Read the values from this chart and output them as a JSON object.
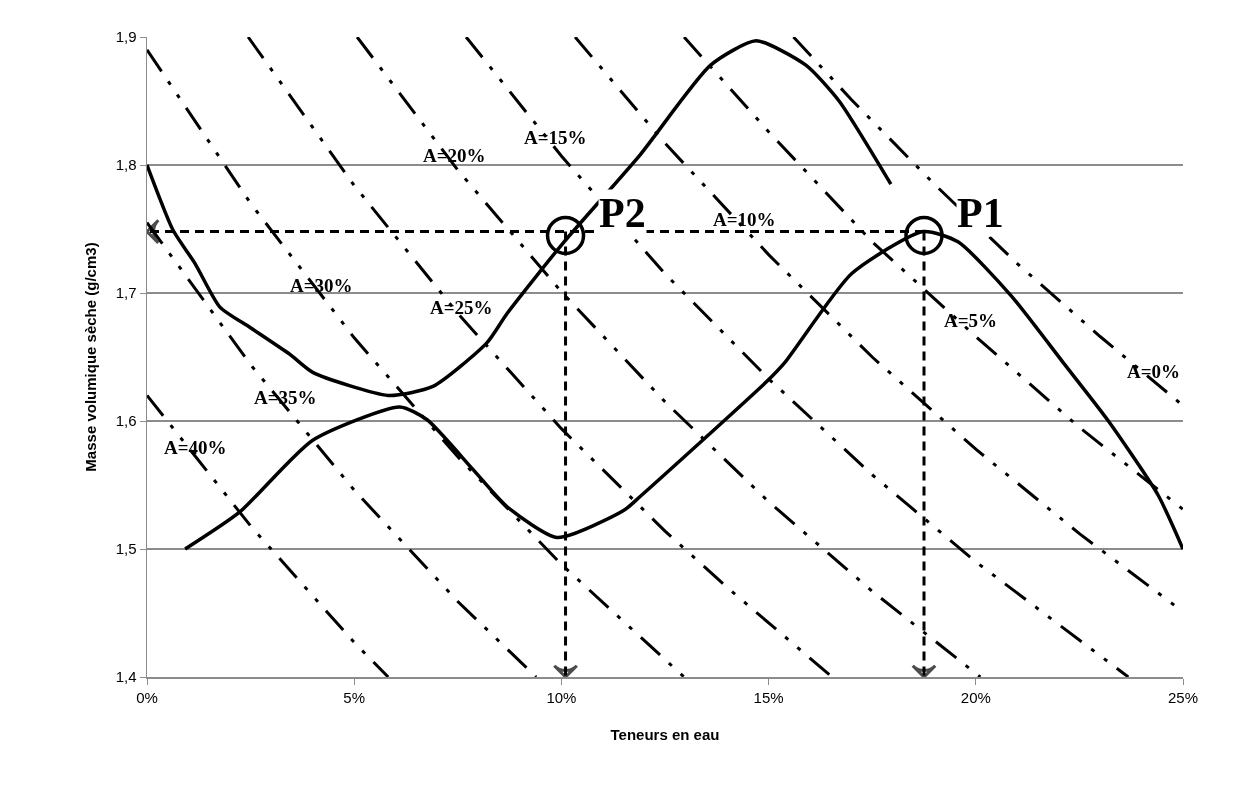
{
  "chart_data": {
    "type": "line",
    "xlabel": "Teneurs en eau",
    "ylabel": "Masse volumique sèche (g/cm3)",
    "xlim": [
      0,
      25
    ],
    "xticks": [
      {
        "value": 0,
        "label": "0%"
      },
      {
        "value": 5,
        "label": "5%"
      },
      {
        "value": 10,
        "label": "10%"
      },
      {
        "value": 15,
        "label": "15%"
      },
      {
        "value": 20,
        "label": "20%"
      },
      {
        "value": 25,
        "label": "25%"
      }
    ],
    "ylim": [
      1.4,
      1.9
    ],
    "yticks": [
      {
        "value": 1.4,
        "label": "1,4"
      },
      {
        "value": 1.5,
        "label": "1,5"
      },
      {
        "value": 1.6,
        "label": "1,6"
      },
      {
        "value": 1.7,
        "label": "1,7"
      },
      {
        "value": 1.8,
        "label": "1,8"
      },
      {
        "value": 1.9,
        "label": "1,9"
      }
    ],
    "grid": "y",
    "marker": "none",
    "series": [
      {
        "color": "#000000",
        "line_style": "dotted",
        "x": [
          15.6,
          17,
          19,
          21,
          23,
          25
        ],
        "values": [
          1.9,
          1.851,
          1.785,
          1.723,
          1.666,
          1.612
        ]
      },
      {
        "color": "#000000",
        "line_style": "dotted",
        "x": [
          12.96,
          15,
          17.5,
          20,
          22.5,
          25
        ],
        "values": [
          1.9,
          1.826,
          1.74,
          1.666,
          1.595,
          1.531
        ]
      },
      {
        "color": "#000000",
        "line_style": "dotted",
        "x": [
          10.33,
          12.5,
          15,
          17.5,
          20,
          22.5,
          25
        ],
        "values": [
          1.9,
          1.817,
          1.73,
          1.65,
          1.578,
          1.512,
          1.451
        ]
      },
      {
        "color": "#000000",
        "line_style": "dotted",
        "x": [
          7.7,
          10,
          12.5,
          15,
          17.5,
          20,
          23.68
        ],
        "values": [
          1.9,
          1.807,
          1.715,
          1.633,
          1.558,
          1.49,
          1.4
        ]
      },
      {
        "color": "#000000",
        "line_style": "dotted",
        "x": [
          5.07,
          7.5,
          10,
          12.5,
          15,
          17.5,
          20.11
        ],
        "values": [
          1.9,
          1.796,
          1.701,
          1.615,
          1.537,
          1.467,
          1.4
        ]
      },
      {
        "color": "#000000",
        "line_style": "dotted",
        "x": [
          2.44,
          5,
          7.5,
          10,
          12.5,
          14,
          16.53
        ],
        "values": [
          1.9,
          1.784,
          1.684,
          1.594,
          1.514,
          1.47,
          1.4
        ]
      },
      {
        "color": "#000000",
        "line_style": "dotted",
        "x": [
          0,
          2.5,
          5,
          7.5,
          10,
          12.96
        ],
        "values": [
          1.89,
          1.77,
          1.665,
          1.572,
          1.488,
          1.4
        ]
      },
      {
        "color": "#000000",
        "line_style": "dotted",
        "x": [
          0,
          2.5,
          5,
          7.5,
          9.39
        ],
        "values": [
          1.755,
          1.644,
          1.546,
          1.459,
          1.4
        ]
      },
      {
        "color": "#000000",
        "line_style": "dotted",
        "x": [
          0,
          2.5,
          5,
          5.82
        ],
        "values": [
          1.62,
          1.518,
          1.427,
          1.4
        ]
      },
      {
        "color": "#000000",
        "line_style": "solid",
        "x": [
          0,
          0.63,
          1.16,
          1.76,
          2.49,
          3.45,
          4.0,
          5.82,
          6.9,
          8.2,
          8.69,
          10.04,
          11.9,
          13.6,
          14.7,
          15.9,
          16.7,
          17.95
        ],
        "values": [
          1.8,
          1.749,
          1.723,
          1.689,
          1.673,
          1.652,
          1.638,
          1.62,
          1.627,
          1.661,
          1.684,
          1.739,
          1.808,
          1.878,
          1.897,
          1.878,
          1.85,
          1.785
        ]
      },
      {
        "color": "#000000",
        "line_style": "solid",
        "x": [
          0.92,
          2.24,
          4.0,
          6.1,
          6.76,
          7.87,
          8.69,
          9.9,
          11.5,
          11.9,
          14.96,
          15.4,
          17.0,
          18.73,
          19.57,
          20.85,
          22.1,
          23.2,
          24.4,
          25
        ],
        "values": [
          1.5,
          1.529,
          1.585,
          1.611,
          1.601,
          1.562,
          1.533,
          1.509,
          1.53,
          1.541,
          1.631,
          1.646,
          1.715,
          1.748,
          1.74,
          1.698,
          1.646,
          1.6,
          1.542,
          1.5
        ]
      },
      {
        "color": "#000000",
        "line_style": "dashed",
        "x": [
          18.75,
          0
        ],
        "values": [
          1.748,
          1.748
        ]
      },
      {
        "color": "#000000",
        "line_style": "dashed",
        "x": [
          10.1,
          10.1
        ],
        "values": [
          1.748,
          1.4
        ]
      },
      {
        "color": "#000000",
        "line_style": "dashed",
        "x": [
          18.75,
          18.75
        ],
        "values": [
          1.748,
          1.4
        ]
      },
      {
        "type": "scatter",
        "marker": "circle",
        "color": "#000000",
        "x": [
          10.1,
          18.75
        ],
        "values": [
          1.745,
          1.745
        ]
      }
    ],
    "annotations": [
      {
        "text": "A=0%",
        "x": 24.3,
        "y": 1.63
      },
      {
        "text": "A=5%",
        "x": 19.86,
        "y": 1.67
      },
      {
        "text": "A=10%",
        "x": 14.43,
        "y": 1.749
      },
      {
        "text": "A=15%",
        "x": 9.85,
        "y": 1.813
      },
      {
        "text": "A=20%",
        "x": 7.43,
        "y": 1.799
      },
      {
        "text": "A=25%",
        "x": 7.6,
        "y": 1.68
      },
      {
        "text": "A=30%",
        "x": 4.22,
        "y": 1.697
      },
      {
        "text": "A=35%",
        "x": 3.33,
        "y": 1.61
      },
      {
        "text": "A=40%",
        "x": 1.16,
        "y": 1.571
      },
      {
        "text": "P2",
        "x": 10.1,
        "y": 1.745
      },
      {
        "text": "P1",
        "x": 18.75,
        "y": 1.745
      }
    ]
  }
}
